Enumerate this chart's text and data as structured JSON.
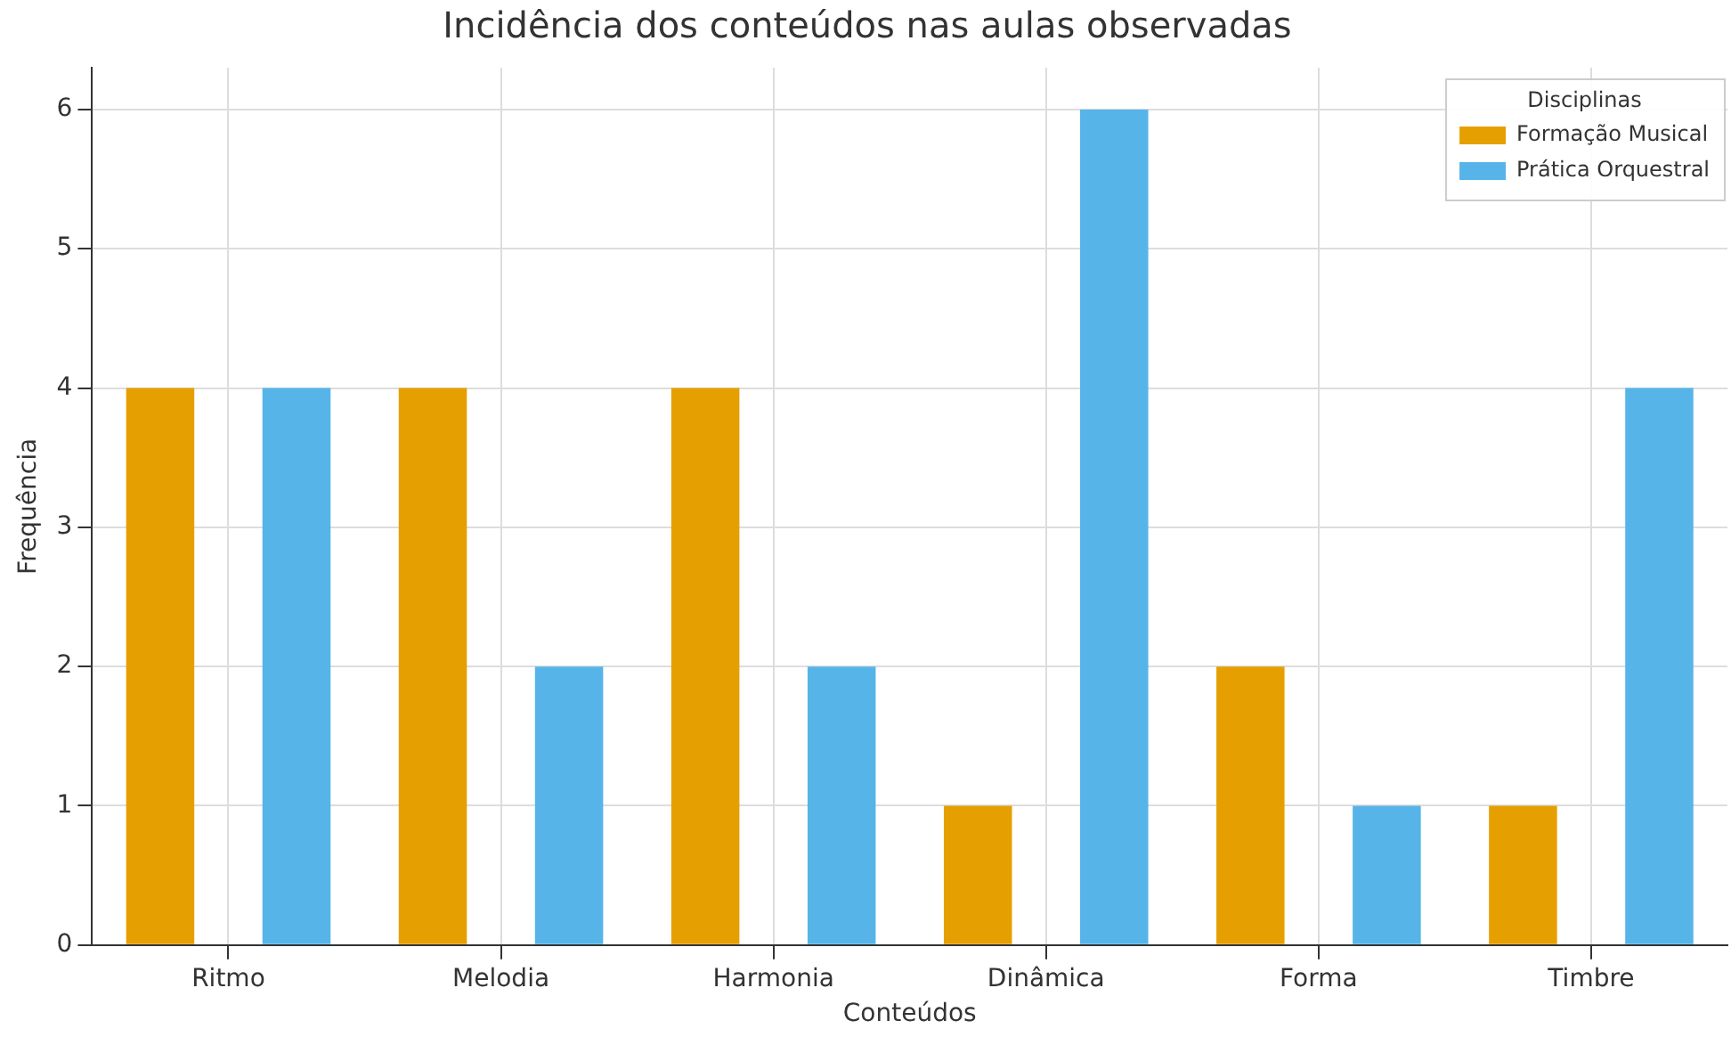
{
  "chart_data": {
    "type": "bar",
    "title": "Incidência dos conteúdos nas aulas observadas",
    "xlabel": "Conteúdos",
    "ylabel": "Frequência",
    "legend_title": "Disciplinas",
    "categories": [
      "Ritmo",
      "Melodia",
      "Harmonia",
      "Dinâmica",
      "Forma",
      "Timbre"
    ],
    "series": [
      {
        "name": "Formação Musical",
        "color": "#e69f00",
        "values": [
          4,
          4,
          4,
          1,
          2,
          1
        ]
      },
      {
        "name": "Prática Orquestral",
        "color": "#56b4e9",
        "values": [
          4,
          2,
          2,
          6,
          1,
          4
        ]
      }
    ],
    "ylim": [
      0,
      6.3
    ],
    "yticks": [
      0,
      1,
      2,
      3,
      4,
      5,
      6
    ],
    "grid": true,
    "legend": "top right"
  }
}
